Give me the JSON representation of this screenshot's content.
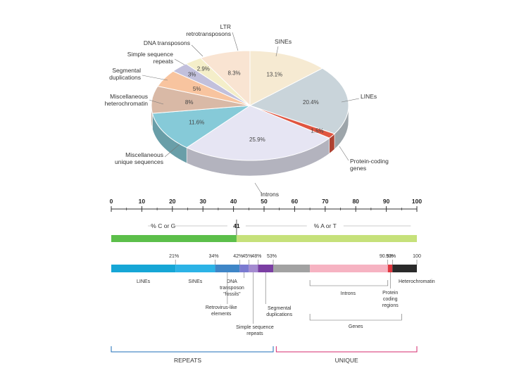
{
  "chart_data": [
    {
      "type": "pie",
      "slices": [
        {
          "label": "SINEs",
          "pct_label": "13.1%",
          "value": 13.1,
          "color": "#f6ead2"
        },
        {
          "label": "LINEs",
          "pct_label": "20.4%",
          "value": 20.4,
          "color": "#c9d4da"
        },
        {
          "label": "Protein-coding genes",
          "pct_label": "1.5%",
          "value": 1.5,
          "color": "#e05540"
        },
        {
          "label": "Introns",
          "pct_label": "25.9%",
          "value": 25.9,
          "color": "#e6e5f3"
        },
        {
          "label": "Miscellaneous unique sequences",
          "pct_label": "11.6%",
          "value": 11.6,
          "color": "#86cad8"
        },
        {
          "label": "Miscellaneous heterochromatin",
          "pct_label": "8%",
          "value": 8,
          "color": "#d9b9a6"
        },
        {
          "label": "Segmental duplications",
          "pct_label": "5%",
          "value": 5,
          "color": "#f8c49f"
        },
        {
          "label": "Simple sequence repeats",
          "pct_label": "3%",
          "value": 3,
          "color": "#c2c0dc"
        },
        {
          "label": "DNA transposons",
          "pct_label": "2.9%",
          "value": 2.9,
          "color": "#f4eec9"
        },
        {
          "label": "LTR retrotransposons",
          "pct_label": "8.3%",
          "value": 8.3,
          "color": "#f9e4d2"
        }
      ]
    },
    {
      "type": "bar",
      "axis_ticks": [
        "0",
        "10",
        "20",
        "30",
        "40",
        "50",
        "60",
        "70",
        "80",
        "90",
        "100"
      ],
      "xlim": [
        0,
        100
      ],
      "gc_value": 41,
      "gc_label": "41",
      "gc_text": "% C or G",
      "at_text": "% A or T",
      "gc_color": "#5cbf4a",
      "at_color": "#c6e17a"
    },
    {
      "type": "bar",
      "boundary_labels": [
        {
          "text": "21%",
          "value": 21
        },
        {
          "text": "34%",
          "value": 34
        },
        {
          "text": "42%",
          "value": 42
        },
        {
          "text": "45%",
          "value": 45
        },
        {
          "text": "48%",
          "value": 48
        },
        {
          "text": "53%",
          "value": 53
        },
        {
          "text": "90.5%",
          "value": 90.5
        },
        {
          "text": "92%",
          "value": 92
        },
        {
          "text": "100",
          "value": 100
        }
      ],
      "segments": [
        {
          "label": "LINEs",
          "start": 0,
          "end": 21,
          "color": "#16a6d6"
        },
        {
          "label": "SINEs",
          "start": 21,
          "end": 34,
          "color": "#2cb3e6"
        },
        {
          "label": "Retrovirus-like elements",
          "start": 34,
          "end": 42,
          "color": "#3f86c7"
        },
        {
          "label": "DNA transposon 'fossils'",
          "start": 42,
          "end": 45,
          "color": "#7a7ad0"
        },
        {
          "label": "Simple sequence repeats",
          "start": 45,
          "end": 48,
          "color": "#a48bd0"
        },
        {
          "label": "Segmental duplications",
          "start": 48,
          "end": 53,
          "color": "#7b3fa3"
        },
        {
          "label": "",
          "start": 53,
          "end": 65,
          "color": "#a2a2a2"
        },
        {
          "label": "Introns",
          "start": 65,
          "end": 90.5,
          "color": "#f6b3c2"
        },
        {
          "label": "Protein coding regions",
          "start": 90.5,
          "end": 92,
          "color": "#e0373f"
        },
        {
          "label": "Heterochromatin",
          "start": 92,
          "end": 100,
          "color": "#2a2a2a"
        }
      ],
      "genes_label": "Genes",
      "repeats_label": "REPEATS",
      "unique_label": "UNIQUE",
      "repeats_color": "#1f6fb8",
      "unique_color": "#d6286e"
    }
  ]
}
